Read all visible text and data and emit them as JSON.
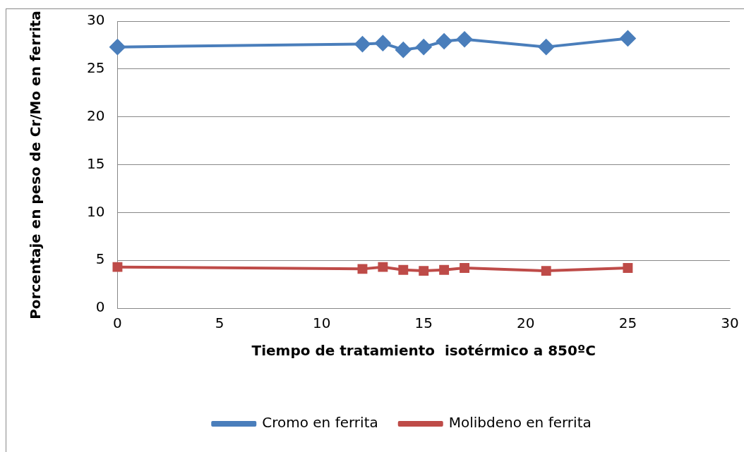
{
  "chart_data": {
    "type": "line",
    "xlabel": "Tiempo de tratamiento  isotérmico a 850ºC",
    "ylabel": "Porcentaje en peso de Cr/Mo en ferrita",
    "x": [
      0,
      12,
      13,
      14,
      15,
      16,
      17,
      21,
      25
    ],
    "series": [
      {
        "name": "Cromo en ferrita",
        "color": "#4a7ebb",
        "marker": "diamond",
        "values": [
          27.3,
          27.6,
          27.7,
          27.0,
          27.3,
          27.9,
          28.1,
          27.3,
          28.2
        ]
      },
      {
        "name": "Molibdeno en ferrita",
        "color": "#be4b48",
        "marker": "square",
        "values": [
          4.3,
          4.1,
          4.3,
          4.0,
          3.9,
          4.0,
          4.2,
          3.9,
          4.2
        ]
      }
    ],
    "xlim": [
      0,
      30
    ],
    "xticks": [
      0,
      5,
      10,
      15,
      20,
      25,
      30
    ],
    "ylim": [
      0,
      30
    ],
    "yticks": [
      0,
      5,
      10,
      15,
      20,
      25,
      30
    ],
    "grid": "y",
    "legend": "bottom"
  }
}
